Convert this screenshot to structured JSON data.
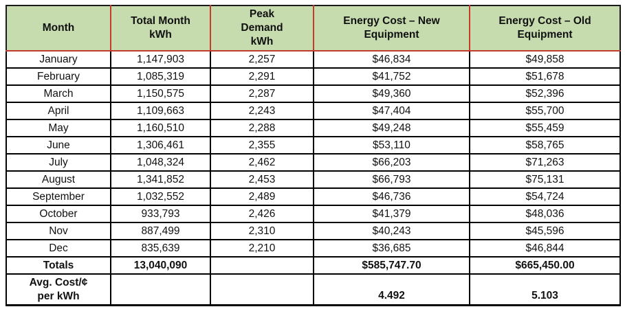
{
  "colors": {
    "header_background": "#c6dbae",
    "header_border": "#c23b2b",
    "grid_border": "#000000",
    "text": "#111111",
    "page_background": "#ffffff"
  },
  "table": {
    "columns": [
      {
        "id": "month",
        "label": "Month"
      },
      {
        "id": "kwh",
        "label": "Total Month\nkWh"
      },
      {
        "id": "peak",
        "label": "Peak\nDemand\nkWh"
      },
      {
        "id": "new_cost",
        "label": "Energy Cost – New\nEquipment"
      },
      {
        "id": "old_cost",
        "label": "Energy Cost – Old\nEquipment"
      }
    ],
    "rows": [
      {
        "month": "January",
        "kwh": "1,147,903",
        "peak": "2,257",
        "new_cost": "$46,834",
        "old_cost": "$49,858"
      },
      {
        "month": "February",
        "kwh": "1,085,319",
        "peak": "2,291",
        "new_cost": "$41,752",
        "old_cost": "$51,678"
      },
      {
        "month": "March",
        "kwh": "1,150,575",
        "peak": "2,287",
        "new_cost": "$49,360",
        "old_cost": "$52,396"
      },
      {
        "month": "April",
        "kwh": "1,109,663",
        "peak": "2,243",
        "new_cost": "$47,404",
        "old_cost": "$55,700"
      },
      {
        "month": "May",
        "kwh": "1,160,510",
        "peak": "2,288",
        "new_cost": "$49,248",
        "old_cost": "$55,459"
      },
      {
        "month": "June",
        "kwh": "1,306,461",
        "peak": "2,355",
        "new_cost": "$53,110",
        "old_cost": "$58,765"
      },
      {
        "month": "July",
        "kwh": "1,048,324",
        "peak": "2,462",
        "new_cost": "$66,203",
        "old_cost": "$71,263"
      },
      {
        "month": "August",
        "kwh": "1,341,852",
        "peak": "2,453",
        "new_cost": "$66,793",
        "old_cost": "$75,131"
      },
      {
        "month": "September",
        "kwh": "1,032,552",
        "peak": "2,489",
        "new_cost": "$46,736",
        "old_cost": "$54,724"
      },
      {
        "month": "October",
        "kwh": "933,793",
        "peak": "2,426",
        "new_cost": "$41,379",
        "old_cost": "$48,036"
      },
      {
        "month": "Nov",
        "kwh": "887,499",
        "peak": "2,310",
        "new_cost": "$40,243",
        "old_cost": "$45,596"
      },
      {
        "month": "Dec",
        "kwh": "835,639",
        "peak": "2,210",
        "new_cost": "$36,685",
        "old_cost": "$46,844"
      }
    ],
    "totals_row": {
      "month": "Totals",
      "kwh": "13,040,090",
      "peak": "",
      "new_cost": "$585,747.70",
      "old_cost": "$665,450.00"
    },
    "avg_row": {
      "month": "Avg. Cost/¢\nper kWh",
      "kwh": "",
      "peak": "",
      "new_cost": "4.492",
      "old_cost": "5.103"
    }
  },
  "chart_data": {
    "type": "table",
    "title": "",
    "columns": [
      "Month",
      "Total Month kWh",
      "Peak Demand kWh",
      "Energy Cost – New Equipment",
      "Energy Cost – Old Equipment"
    ],
    "rows": [
      [
        "January",
        1147903,
        2257,
        46834,
        49858
      ],
      [
        "February",
        1085319,
        2291,
        41752,
        51678
      ],
      [
        "March",
        1150575,
        2287,
        49360,
        52396
      ],
      [
        "April",
        1109663,
        2243,
        47404,
        55700
      ],
      [
        "May",
        1160510,
        2288,
        49248,
        55459
      ],
      [
        "June",
        1306461,
        2355,
        53110,
        58765
      ],
      [
        "July",
        1048324,
        2462,
        66203,
        71263
      ],
      [
        "August",
        1341852,
        2453,
        66793,
        75131
      ],
      [
        "September",
        1032552,
        2489,
        46736,
        54724
      ],
      [
        "October",
        933793,
        2426,
        41379,
        48036
      ],
      [
        "Nov",
        887499,
        2310,
        40243,
        45596
      ],
      [
        "Dec",
        835639,
        2210,
        36685,
        46844
      ]
    ],
    "totals": {
      "total_month_kwh": 13040090,
      "energy_cost_new_equipment": 585747.7,
      "energy_cost_old_equipment": 665450.0
    },
    "avg_cost_cents_per_kwh": {
      "new_equipment": 4.492,
      "old_equipment": 5.103
    }
  }
}
